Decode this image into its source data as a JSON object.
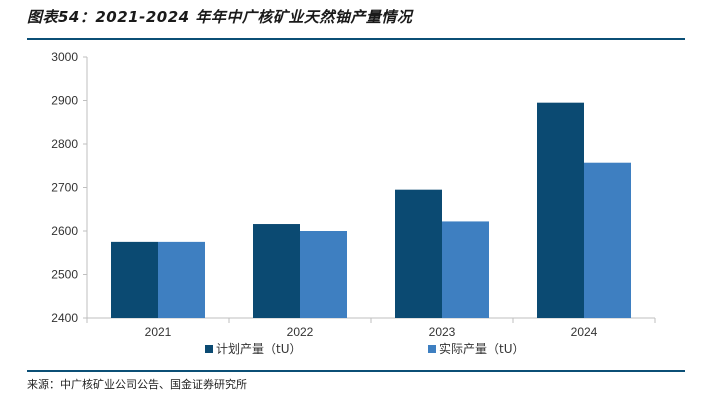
{
  "header": {
    "title": "图表54：2021-2024 年年中广核矿业天然铀产量情况"
  },
  "footer": {
    "source": "来源：中广核矿业公司公告、国金证券研究所"
  },
  "chart_data": {
    "type": "bar",
    "title": "图表54：2021-2024 年年中广核矿业天然铀产量情况",
    "categories": [
      "2021",
      "2022",
      "2023",
      "2024"
    ],
    "series": [
      {
        "name": "计划产量（tU）",
        "values": [
          2575,
          2616,
          2695,
          2895
        ],
        "color": "#0b4a72"
      },
      {
        "name": "实际产量（tU）",
        "values": [
          2575,
          2600,
          2622,
          2757
        ],
        "color": "#3e7fc1"
      }
    ],
    "ylim": [
      2400,
      3000
    ],
    "yticks": [
      2400,
      2500,
      2600,
      2700,
      2800,
      2900,
      3000
    ],
    "grid": false,
    "legend": "bottom"
  }
}
